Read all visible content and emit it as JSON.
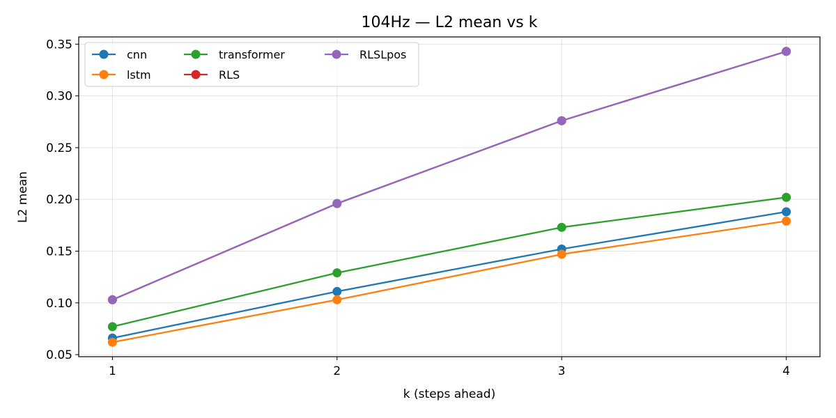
{
  "chart_data": {
    "type": "line",
    "title": "104Hz — L2 mean vs k",
    "xlabel": "k (steps ahead)",
    "ylabel": "L2 mean",
    "x": [
      1,
      2,
      3,
      4
    ],
    "xlim": [
      0.85,
      4.15
    ],
    "ylim": [
      0.048,
      0.357
    ],
    "xticks": [
      1,
      2,
      3,
      4
    ],
    "yticks": [
      0.05,
      0.1,
      0.15,
      0.2,
      0.25,
      0.3,
      0.35
    ],
    "ytick_labels": [
      "0.05",
      "0.10",
      "0.15",
      "0.20",
      "0.25",
      "0.30",
      "0.35"
    ],
    "grid": true,
    "legend": {
      "placement": "upper-left",
      "columns": 3
    },
    "series": [
      {
        "name": "cnn",
        "color": "#1f77b4",
        "values": [
          0.066,
          0.111,
          0.152,
          0.188
        ]
      },
      {
        "name": "lstm",
        "color": "#ff7f0e",
        "values": [
          0.062,
          0.103,
          0.147,
          0.179
        ]
      },
      {
        "name": "transformer",
        "color": "#2ca02c",
        "values": [
          0.077,
          0.129,
          0.173,
          0.202
        ]
      },
      {
        "name": "RLS",
        "color": "#d62728",
        "values": [
          0.103,
          0.196,
          0.276,
          0.343
        ]
      },
      {
        "name": "RLSLpos",
        "color": "#9467bd",
        "values": [
          0.103,
          0.196,
          0.276,
          0.343
        ]
      }
    ]
  }
}
